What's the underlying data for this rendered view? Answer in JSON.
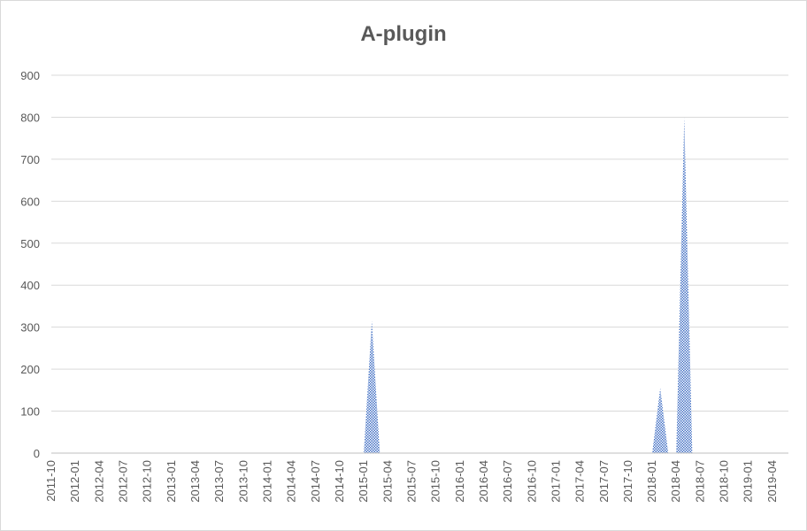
{
  "chart_data": {
    "type": "area",
    "title": "A-plugin",
    "xlabel": "",
    "ylabel": "",
    "ylim": [
      0,
      900
    ],
    "yticks": [
      0,
      100,
      200,
      300,
      400,
      500,
      600,
      700,
      800,
      900
    ],
    "grid": true,
    "legend": "none",
    "x": [
      "2011-10",
      "2011-11",
      "2011-12",
      "2012-01",
      "2012-02",
      "2012-03",
      "2012-04",
      "2012-05",
      "2012-06",
      "2012-07",
      "2012-08",
      "2012-09",
      "2012-10",
      "2012-11",
      "2012-12",
      "2013-01",
      "2013-02",
      "2013-03",
      "2013-04",
      "2013-05",
      "2013-06",
      "2013-07",
      "2013-08",
      "2013-09",
      "2013-10",
      "2013-11",
      "2013-12",
      "2014-01",
      "2014-02",
      "2014-03",
      "2014-04",
      "2014-05",
      "2014-06",
      "2014-07",
      "2014-08",
      "2014-09",
      "2014-10",
      "2014-11",
      "2014-12",
      "2015-01",
      "2015-02",
      "2015-03",
      "2015-04",
      "2015-05",
      "2015-06",
      "2015-07",
      "2015-08",
      "2015-09",
      "2015-10",
      "2015-11",
      "2015-12",
      "2016-01",
      "2016-02",
      "2016-03",
      "2016-04",
      "2016-05",
      "2016-06",
      "2016-07",
      "2016-08",
      "2016-09",
      "2016-10",
      "2016-11",
      "2016-12",
      "2017-01",
      "2017-02",
      "2017-03",
      "2017-04",
      "2017-05",
      "2017-06",
      "2017-07",
      "2017-08",
      "2017-09",
      "2017-10",
      "2017-11",
      "2017-12",
      "2018-01",
      "2018-02",
      "2018-03",
      "2018-04",
      "2018-05",
      "2018-06",
      "2018-07",
      "2018-08",
      "2018-09",
      "2018-10",
      "2018-11",
      "2018-12",
      "2019-01",
      "2019-02",
      "2019-03",
      "2019-04",
      "2019-05",
      "2019-06"
    ],
    "xtick_labels": [
      "2011-10",
      "2012-01",
      "2012-04",
      "2012-07",
      "2012-10",
      "2013-01",
      "2013-04",
      "2013-07",
      "2013-10",
      "2014-01",
      "2014-04",
      "2014-07",
      "2014-10",
      "2015-01",
      "2015-04",
      "2015-07",
      "2015-10",
      "2016-01",
      "2016-04",
      "2016-07",
      "2016-10",
      "2017-01",
      "2017-04",
      "2017-07",
      "2017-10",
      "2018-01",
      "2018-04",
      "2018-07",
      "2018-10",
      "2019-01",
      "2019-04"
    ],
    "series": [
      {
        "color": "#4472c4",
        "values": [
          0,
          0,
          0,
          0,
          0,
          0,
          0,
          0,
          0,
          0,
          0,
          0,
          0,
          0,
          0,
          0,
          0,
          0,
          0,
          0,
          0,
          0,
          0,
          0,
          0,
          0,
          0,
          0,
          0,
          0,
          0,
          0,
          0,
          0,
          0,
          0,
          0,
          0,
          0,
          0,
          315,
          0,
          0,
          0,
          0,
          0,
          0,
          0,
          0,
          0,
          0,
          0,
          0,
          0,
          0,
          0,
          0,
          0,
          0,
          0,
          0,
          0,
          0,
          0,
          0,
          0,
          0,
          0,
          0,
          0,
          0,
          0,
          0,
          0,
          0,
          0,
          155,
          0,
          0,
          800,
          0,
          0,
          0,
          0,
          0,
          0,
          0,
          0,
          0,
          0,
          0,
          0,
          0
        ]
      }
    ]
  }
}
